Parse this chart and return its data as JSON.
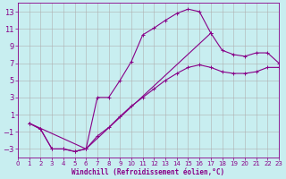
{
  "xlabel": "Windchill (Refroidissement éolien,°C)",
  "bg_color": "#c8eef0",
  "grid_color": "#b0b0b0",
  "line_color": "#880088",
  "xlim": [
    0,
    23
  ],
  "ylim": [
    -4,
    14
  ],
  "xticks": [
    0,
    1,
    2,
    3,
    4,
    5,
    6,
    7,
    8,
    9,
    10,
    11,
    12,
    13,
    14,
    15,
    16,
    17,
    18,
    19,
    20,
    21,
    22,
    23
  ],
  "yticks": [
    -3,
    -1,
    1,
    3,
    5,
    7,
    9,
    11,
    13
  ],
  "curve1_x": [
    1,
    2,
    3,
    4,
    5,
    6,
    7,
    8,
    9,
    10,
    11,
    12,
    13,
    14,
    15,
    16,
    17
  ],
  "curve1_y": [
    0.0,
    -0.7,
    -3.0,
    -3.0,
    -3.3,
    -3.0,
    3.0,
    3.0,
    5.0,
    7.2,
    10.3,
    11.1,
    12.0,
    12.8,
    13.3,
    13.0,
    10.5
  ],
  "curve2_x": [
    1,
    2,
    3,
    4,
    5,
    6,
    7,
    8,
    9,
    10,
    11,
    12,
    13,
    14,
    15,
    16,
    17,
    18,
    19,
    20,
    21,
    22,
    23
  ],
  "curve2_y": [
    0.0,
    -0.7,
    -3.0,
    -3.0,
    -3.3,
    -3.0,
    -1.5,
    -0.5,
    0.8,
    2.0,
    3.0,
    4.0,
    5.0,
    5.8,
    6.5,
    6.8,
    6.5,
    6.0,
    5.8,
    5.8,
    6.0,
    6.5,
    6.5
  ],
  "curve3_x": [
    1,
    6,
    17,
    18,
    19,
    20,
    21,
    22,
    23
  ],
  "curve3_y": [
    0.0,
    -3.0,
    10.5,
    8.5,
    8.0,
    7.8,
    8.2,
    8.2,
    7.0
  ]
}
